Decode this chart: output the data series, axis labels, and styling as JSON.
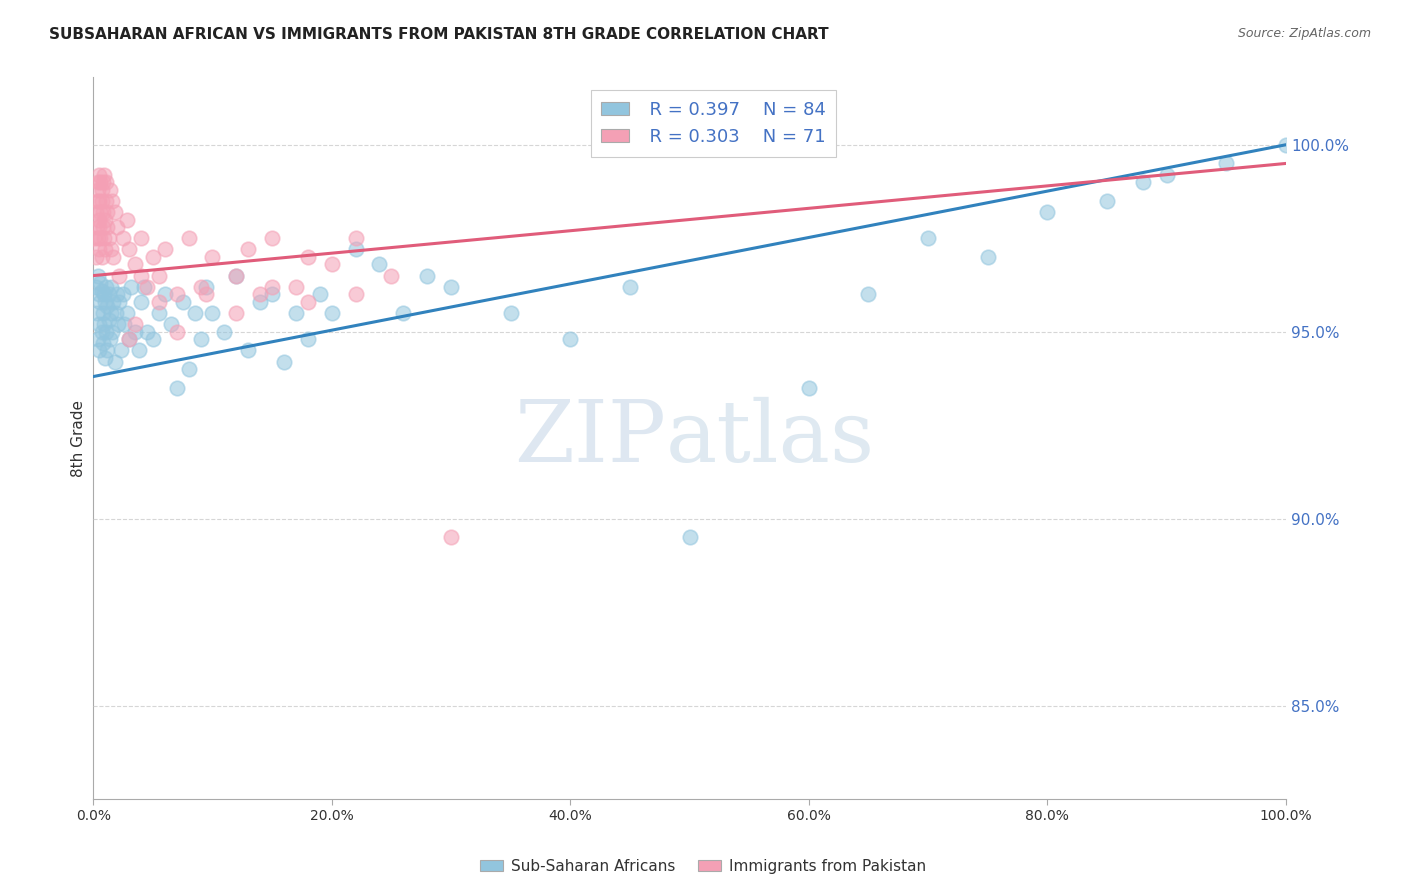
{
  "title": "SUBSAHARAN AFRICAN VS IMMIGRANTS FROM PAKISTAN 8TH GRADE CORRELATION CHART",
  "source": "Source: ZipAtlas.com",
  "ylabel": "8th Grade",
  "legend_blue_r": "R = 0.397",
  "legend_blue_n": "N = 84",
  "legend_pink_r": "R = 0.303",
  "legend_pink_n": "N = 71",
  "legend_blue_label": "Sub-Saharan Africans",
  "legend_pink_label": "Immigrants from Pakistan",
  "watermark_zip": "ZIP",
  "watermark_atlas": "atlas",
  "blue_color": "#92c5de",
  "pink_color": "#f4a0b5",
  "blue_line_color": "#3182bd",
  "pink_line_color": "#e05c7a",
  "ytick_vals": [
    85.0,
    90.0,
    95.0,
    100.0
  ],
  "xlim": [
    0.0,
    100.0
  ],
  "ylim": [
    82.5,
    101.8
  ],
  "blue_trend_x0": 0.0,
  "blue_trend_y0": 93.8,
  "blue_trend_x1": 100.0,
  "blue_trend_y1": 100.0,
  "pink_trend_x0": 0.0,
  "pink_trend_y0": 96.5,
  "pink_trend_x1": 100.0,
  "pink_trend_y1": 99.5,
  "blue_x": [
    0.2,
    0.3,
    0.4,
    0.4,
    0.5,
    0.5,
    0.5,
    0.6,
    0.6,
    0.7,
    0.7,
    0.8,
    0.8,
    0.9,
    0.9,
    1.0,
    1.0,
    1.1,
    1.1,
    1.2,
    1.2,
    1.3,
    1.3,
    1.4,
    1.5,
    1.5,
    1.6,
    1.7,
    1.8,
    1.9,
    2.0,
    2.1,
    2.2,
    2.3,
    2.5,
    2.6,
    2.8,
    3.0,
    3.2,
    3.5,
    3.8,
    4.0,
    4.3,
    4.5,
    5.0,
    5.5,
    6.0,
    6.5,
    7.0,
    7.5,
    8.0,
    8.5,
    9.0,
    9.5,
    10.0,
    11.0,
    12.0,
    13.0,
    14.0,
    15.0,
    16.0,
    17.0,
    18.0,
    19.0,
    20.0,
    22.0,
    24.0,
    26.0,
    28.0,
    30.0,
    35.0,
    40.0,
    45.0,
    50.0,
    60.0,
    65.0,
    70.0,
    75.0,
    80.0,
    85.0,
    88.0,
    90.0,
    95.0,
    100.0
  ],
  "blue_y": [
    96.2,
    95.5,
    94.8,
    96.5,
    95.2,
    96.0,
    94.5,
    95.8,
    96.3,
    95.0,
    96.1,
    94.7,
    95.5,
    96.0,
    95.2,
    95.8,
    94.3,
    96.2,
    95.0,
    95.7,
    94.5,
    96.0,
    95.3,
    94.8,
    95.5,
    96.2,
    95.0,
    95.8,
    94.2,
    95.5,
    96.0,
    95.2,
    95.8,
    94.5,
    96.0,
    95.2,
    95.5,
    94.8,
    96.2,
    95.0,
    94.5,
    95.8,
    96.2,
    95.0,
    94.8,
    95.5,
    96.0,
    95.2,
    93.5,
    95.8,
    94.0,
    95.5,
    94.8,
    96.2,
    95.5,
    95.0,
    96.5,
    94.5,
    95.8,
    96.0,
    94.2,
    95.5,
    94.8,
    96.0,
    95.5,
    97.2,
    96.8,
    95.5,
    96.5,
    96.2,
    95.5,
    94.8,
    96.2,
    89.5,
    93.5,
    96.0,
    97.5,
    97.0,
    98.2,
    98.5,
    99.0,
    99.2,
    99.5,
    100.0
  ],
  "pink_x": [
    0.1,
    0.2,
    0.2,
    0.3,
    0.3,
    0.4,
    0.4,
    0.4,
    0.5,
    0.5,
    0.5,
    0.5,
    0.5,
    0.6,
    0.6,
    0.6,
    0.7,
    0.7,
    0.7,
    0.8,
    0.8,
    0.8,
    0.9,
    0.9,
    1.0,
    1.0,
    1.1,
    1.1,
    1.2,
    1.2,
    1.3,
    1.4,
    1.5,
    1.6,
    1.7,
    1.8,
    2.0,
    2.2,
    2.5,
    2.8,
    3.0,
    3.5,
    4.0,
    4.5,
    5.0,
    5.5,
    6.0,
    7.0,
    8.0,
    9.0,
    10.0,
    12.0,
    13.0,
    14.0,
    15.0,
    17.0,
    18.0,
    20.0,
    22.0,
    25.0,
    3.0,
    3.5,
    4.0,
    5.5,
    7.0,
    9.5,
    12.0,
    15.0,
    18.0,
    22.0,
    30.0
  ],
  "pink_y": [
    97.5,
    98.2,
    97.0,
    98.5,
    97.8,
    99.0,
    98.8,
    97.5,
    99.2,
    98.5,
    97.2,
    98.0,
    97.8,
    99.0,
    98.2,
    97.5,
    98.8,
    97.0,
    98.5,
    99.0,
    97.8,
    98.2,
    99.2,
    97.5,
    98.0,
    97.2,
    98.5,
    99.0,
    97.8,
    98.2,
    97.5,
    98.8,
    97.2,
    98.5,
    97.0,
    98.2,
    97.8,
    96.5,
    97.5,
    98.0,
    97.2,
    96.8,
    97.5,
    96.2,
    97.0,
    96.5,
    97.2,
    96.0,
    97.5,
    96.2,
    97.0,
    96.5,
    97.2,
    96.0,
    97.5,
    96.2,
    97.0,
    96.8,
    97.5,
    96.5,
    94.8,
    95.2,
    96.5,
    95.8,
    95.0,
    96.0,
    95.5,
    96.2,
    95.8,
    96.0,
    89.5
  ]
}
